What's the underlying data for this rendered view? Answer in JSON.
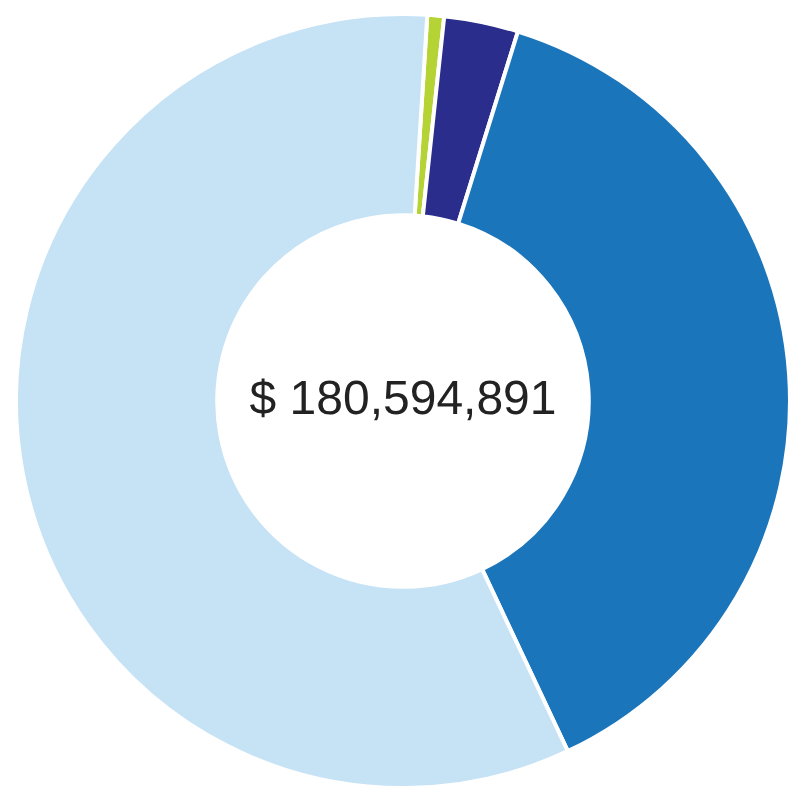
{
  "chart_data": {
    "type": "donut",
    "categories": [
      null,
      null,
      null,
      null
    ],
    "values": [
      0.7,
      3.1,
      38.2,
      58
    ],
    "colors": [
      "#b5d334",
      "#2b2d8c",
      "#1b75bb",
      "#c6e2f5"
    ],
    "annotations": [
      "$ 180,594,891"
    ],
    "legend": false
  }
}
